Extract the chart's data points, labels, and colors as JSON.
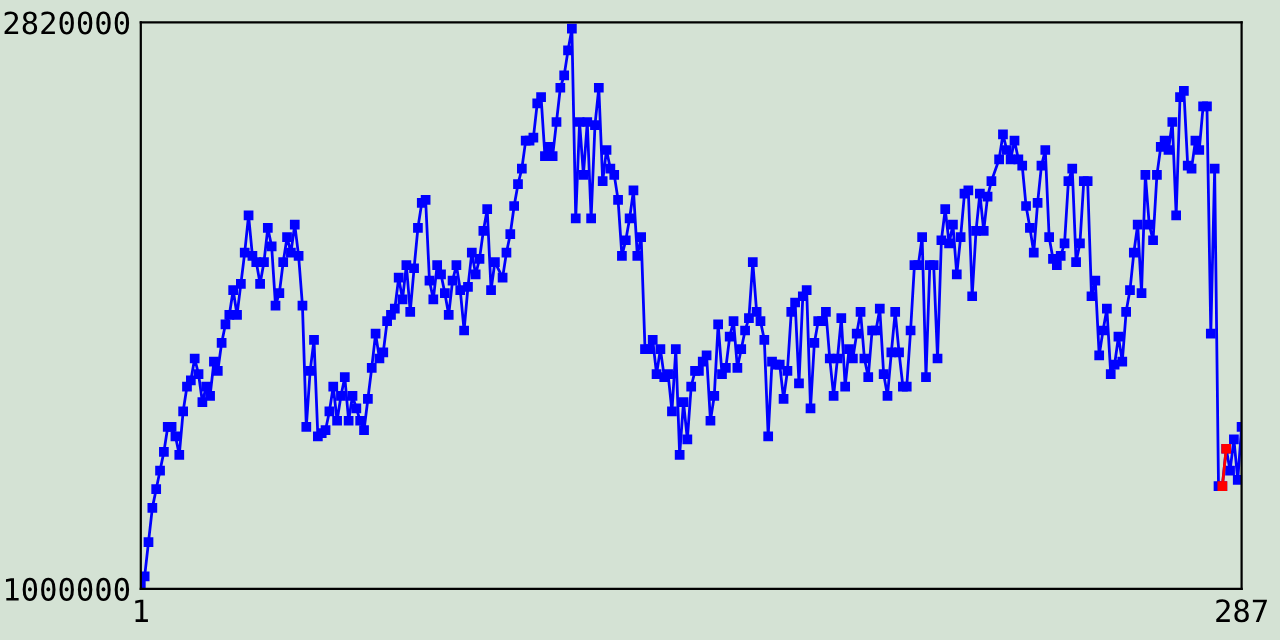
{
  "chart_data": {
    "type": "line",
    "xlim": [
      1,
      287
    ],
    "ylim": [
      1000000,
      2820000
    ],
    "xticks": [
      1,
      287
    ],
    "yticks": [
      1000000,
      2820000
    ],
    "grid": false,
    "legend": false,
    "marker": "square",
    "line_style": "solid",
    "series": [
      {
        "color": "#0000ff",
        "x": [
          1,
          2,
          3,
          4,
          5,
          6,
          7,
          8,
          9,
          10,
          11,
          12,
          13,
          14,
          15,
          16,
          17,
          18,
          19,
          20,
          21,
          22,
          23,
          24,
          25,
          26,
          27,
          28,
          29,
          30,
          31,
          32,
          33,
          34,
          35,
          36,
          37,
          38,
          39,
          40,
          41,
          42,
          43,
          44,
          45,
          46,
          47,
          48,
          49,
          50,
          51,
          52,
          53,
          54,
          55,
          56,
          57,
          58,
          59,
          60,
          61,
          62,
          63,
          64,
          65,
          66,
          67,
          68,
          69,
          70,
          71,
          72,
          73,
          74,
          75,
          76,
          77,
          78,
          79,
          80,
          81,
          82,
          83,
          84,
          85,
          86,
          87,
          88,
          89,
          90,
          91,
          92,
          93,
          95,
          96,
          97,
          98,
          99,
          100,
          101,
          102,
          103,
          104,
          105,
          106,
          107,
          108,
          109,
          110,
          111,
          112,
          113,
          114,
          115,
          116,
          117,
          118,
          119,
          120,
          121,
          122,
          123,
          124,
          125,
          126,
          127,
          128,
          129,
          130,
          131,
          132,
          133,
          134,
          135,
          136,
          137,
          138,
          139,
          140,
          141,
          142,
          143,
          144,
          145,
          146,
          147,
          148,
          149,
          150,
          151,
          152,
          153,
          154,
          155,
          156,
          157,
          158,
          159,
          160,
          161,
          162,
          163,
          164,
          165,
          166,
          167,
          168,
          169,
          170,
          171,
          172,
          173,
          174,
          175,
          176,
          177,
          178,
          179,
          180,
          181,
          182,
          183,
          184,
          185,
          186,
          187,
          188,
          189,
          190,
          191,
          192,
          193,
          194,
          195,
          196,
          197,
          198,
          199,
          200,
          201,
          202,
          203,
          204,
          205,
          206,
          207,
          208,
          209,
          210,
          211,
          212,
          213,
          214,
          215,
          216,
          217,
          218,
          219,
          220,
          221,
          222,
          224,
          225,
          226,
          227,
          228,
          229,
          230,
          231,
          232,
          233,
          234,
          235,
          236,
          237,
          238,
          239,
          240,
          241,
          242,
          243,
          244,
          245,
          246,
          247,
          248,
          249,
          250,
          251,
          252,
          253,
          254,
          255,
          256,
          257,
          258,
          259,
          260,
          261,
          262,
          263,
          264,
          265,
          266,
          267,
          268,
          269,
          270,
          271,
          272,
          273,
          274,
          275,
          276,
          277,
          278,
          279,
          280,
          281,
          282,
          283,
          284,
          285,
          286,
          287
        ],
        "values": [
          1010000,
          1040000,
          1150000,
          1260000,
          1320000,
          1380000,
          1440000,
          1520000,
          1520000,
          1490000,
          1430000,
          1570000,
          1650000,
          1670000,
          1740000,
          1690000,
          1600000,
          1650000,
          1620000,
          1730000,
          1700000,
          1790000,
          1850000,
          1880000,
          1960000,
          1880000,
          1980000,
          2080000,
          2200000,
          2070000,
          2050000,
          1980000,
          2050000,
          2160000,
          2100000,
          1910000,
          1950000,
          2050000,
          2130000,
          2080000,
          2170000,
          2070000,
          1910000,
          1520000,
          1700000,
          1800000,
          1490000,
          1500000,
          1510000,
          1570000,
          1650000,
          1540000,
          1620000,
          1680000,
          1540000,
          1620000,
          1580000,
          1540000,
          1510000,
          1610000,
          1710000,
          1820000,
          1740000,
          1760000,
          1860000,
          1880000,
          1900000,
          2000000,
          1930000,
          2040000,
          1890000,
          2030000,
          2160000,
          2240000,
          2250000,
          1990000,
          1930000,
          2040000,
          2010000,
          1950000,
          1880000,
          1990000,
          2040000,
          1960000,
          1830000,
          1970000,
          2080000,
          2010000,
          2060000,
          2150000,
          2220000,
          1960000,
          2050000,
          2000000,
          2080000,
          2140000,
          2230000,
          2300000,
          2350000,
          2440000,
          2440000,
          2450000,
          2560000,
          2580000,
          2390000,
          2420000,
          2390000,
          2500000,
          2610000,
          2650000,
          2730000,
          2800000,
          2190000,
          2500000,
          2330000,
          2500000,
          2190000,
          2490000,
          2610000,
          2310000,
          2410000,
          2350000,
          2330000,
          2250000,
          2070000,
          2120000,
          2190000,
          2280000,
          2070000,
          2130000,
          1770000,
          1770000,
          1800000,
          1690000,
          1770000,
          1680000,
          1690000,
          1570000,
          1770000,
          1430000,
          1600000,
          1480000,
          1650000,
          1700000,
          1700000,
          1730000,
          1750000,
          1540000,
          1620000,
          1850000,
          1690000,
          1710000,
          1810000,
          1860000,
          1710000,
          1770000,
          1830000,
          1870000,
          2050000,
          1890000,
          1860000,
          1800000,
          1490000,
          1730000,
          1720000,
          1720000,
          1610000,
          1700000,
          1890000,
          1920000,
          1660000,
          1940000,
          1960000,
          1580000,
          1790000,
          1860000,
          1860000,
          1890000,
          1740000,
          1620000,
          1740000,
          1870000,
          1650000,
          1770000,
          1740000,
          1820000,
          1890000,
          1740000,
          1680000,
          1830000,
          1830000,
          1900000,
          1690000,
          1620000,
          1760000,
          1890000,
          1760000,
          1650000,
          1650000,
          1830000,
          2040000,
          2040000,
          2130000,
          1680000,
          2040000,
          2040000,
          1740000,
          2120000,
          2220000,
          2110000,
          2170000,
          2010000,
          2130000,
          2270000,
          2280000,
          1940000,
          2150000,
          2270000,
          2150000,
          2260000,
          2310000,
          2380000,
          2460000,
          2410000,
          2380000,
          2440000,
          2380000,
          2360000,
          2230000,
          2160000,
          2080000,
          2240000,
          2360000,
          2410000,
          2130000,
          2060000,
          2040000,
          2070000,
          2110000,
          2310000,
          2350000,
          2050000,
          2110000,
          2310000,
          2310000,
          1940000,
          1990000,
          1750000,
          1830000,
          1900000,
          1690000,
          1720000,
          1810000,
          1730000,
          1890000,
          1960000,
          2080000,
          2170000,
          1950000,
          2330000,
          2170000,
          2120000,
          2330000,
          2420000,
          2440000,
          2410000,
          2500000,
          2200000,
          2580000,
          2600000,
          2360000,
          2350000,
          2440000,
          2410000,
          2550000,
          2550000,
          1820000,
          2350000,
          1330000,
          1330000,
          1450000,
          1380000,
          1480000,
          1350000,
          1520000
        ]
      },
      {
        "color": "#ff0000",
        "x": [
          282,
          283
        ],
        "values": [
          1330000,
          1450000
        ]
      }
    ]
  }
}
